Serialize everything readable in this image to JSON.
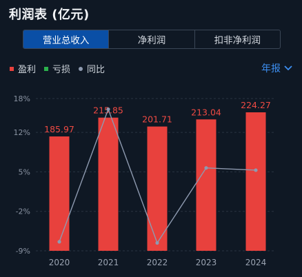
{
  "header": {
    "title": "利润表 (亿元)"
  },
  "tabs": [
    {
      "label": "营业总收入",
      "active": true
    },
    {
      "label": "净利润",
      "active": false
    },
    {
      "label": "扣非净利润",
      "active": false
    }
  ],
  "legend": [
    {
      "label": "盈利",
      "color": "#e8413d",
      "shape": "square"
    },
    {
      "label": "亏损",
      "color": "#2bb24c",
      "shape": "square"
    },
    {
      "label": "同比",
      "color": "#8e9ab0",
      "shape": "dot"
    }
  ],
  "period": {
    "label": "年报",
    "icon": "chevron-down-icon"
  },
  "chart_data": {
    "type": "bar",
    "categories": [
      "2020",
      "2021",
      "2022",
      "2023",
      "2024"
    ],
    "series": [
      {
        "name": "盈利",
        "values": [
          185.97,
          215.85,
          201.71,
          213.04,
          224.27
        ],
        "color": "#e8413d"
      },
      {
        "name": "同比",
        "type": "line",
        "values": [
          -7.4,
          16.1,
          -7.6,
          5.7,
          5.3
        ],
        "color": "#8e9ab0"
      }
    ],
    "value_labels": [
      "185.97",
      "215.85",
      "201.71",
      "213.04",
      "224.27"
    ],
    "ytick_labels": [
      "18%",
      "12%",
      "5%",
      "-2%",
      "-9%"
    ],
    "yticks": [
      18,
      12,
      5,
      -2,
      -9
    ],
    "ylim": [
      -9,
      18
    ],
    "grid": true
  }
}
